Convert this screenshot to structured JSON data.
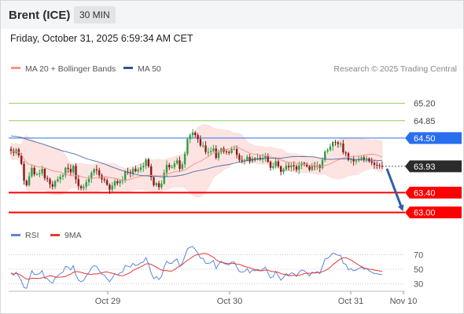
{
  "header": {
    "title": "Brent (ICE)",
    "timeframe": "30 MIN"
  },
  "date_label": "Friday, October 31, 2025 6:59:34 AM CET",
  "legend": {
    "items": [
      {
        "label": "MA 20 + Bollinger Bands",
        "color": "#f4958b"
      },
      {
        "label": "MA 50",
        "color": "#2f5597"
      }
    ],
    "credit": "Research © 2025 Trading Central"
  },
  "rsi_legend": {
    "items": [
      {
        "label": "RSI",
        "color": "#5b87d9"
      },
      {
        "label": "9MA",
        "color": "#e53935"
      }
    ]
  },
  "colors": {
    "up": "#2f9e44",
    "down": "#8b1a1a",
    "support": "#ff0000",
    "resistance": "#8dcf5a",
    "pivot": "#2a6ef0",
    "last": "#2b2b2b",
    "arrow": "#2f5ea8"
  },
  "chart_data": {
    "type": "candlestick",
    "x_ticks": [
      "Oct 29",
      "Oct 30",
      "Oct 31",
      "Nov 10"
    ],
    "ylim": [
      62.9,
      65.4
    ],
    "levels": [
      {
        "value": 65.2,
        "label": "65.20",
        "kind": "resistance"
      },
      {
        "value": 64.85,
        "label": "64.85",
        "kind": "resistance"
      },
      {
        "value": 64.5,
        "label": "64.50",
        "kind": "pivot"
      },
      {
        "value": 63.93,
        "label": "63.93",
        "kind": "last"
      },
      {
        "value": 63.4,
        "label": "63.40",
        "kind": "support"
      },
      {
        "value": 63.0,
        "label": "63.00",
        "kind": "support"
      }
    ],
    "forecast": {
      "from": 63.93,
      "to": 63.02
    },
    "close": [
      64.24,
      64.2,
      64.27,
      64.15,
      63.98,
      63.64,
      63.55,
      63.73,
      63.9,
      63.77,
      63.77,
      63.79,
      63.88,
      63.69,
      63.67,
      63.57,
      63.52,
      63.63,
      63.67,
      63.72,
      63.75,
      63.9,
      63.88,
      63.81,
      63.94,
      63.67,
      63.53,
      63.49,
      63.52,
      63.61,
      63.68,
      63.8,
      63.87,
      63.85,
      63.75,
      63.67,
      63.65,
      63.56,
      63.46,
      63.54,
      63.63,
      63.59,
      63.64,
      63.65,
      63.82,
      63.81,
      63.79,
      63.88,
      63.83,
      63.86,
      63.91,
      63.94,
      64.07,
      63.93,
      63.71,
      63.55,
      63.59,
      63.51,
      63.58,
      63.8,
      63.96,
      63.91,
      63.91,
      63.99,
      64.05,
      63.88,
      63.97,
      64.18,
      64.48,
      64.56,
      64.61,
      64.56,
      64.48,
      64.35,
      64.35,
      64.22,
      64.22,
      64.24,
      64.29,
      64.1,
      64.21,
      64.29,
      64.23,
      64.22,
      64.2,
      64.28,
      64.28,
      64.16,
      64.06,
      64.05,
      64.06,
      64.12,
      64.03,
      64.09,
      64.07,
      64.1,
      64.07,
      64.1,
      64.14,
      64.02,
      63.9,
      63.93,
      64.03,
      63.93,
      63.82,
      63.87,
      63.94,
      63.91,
      63.95,
      63.93,
      63.86,
      63.95,
      64.0,
      63.98,
      63.93,
      63.86,
      63.94,
      63.92,
      63.95,
      63.9,
      64.06,
      64.23,
      64.26,
      64.33,
      64.42,
      64.41,
      64.38,
      64.39,
      64.21,
      64.19,
      64.06,
      64.08,
      64.03,
      64.05,
      64.08,
      64.11,
      64.07,
      64.09,
      64.03,
      64.0,
      63.96,
      63.95,
      63.94,
      63.93
    ],
    "rsi": {
      "ticks": [
        70,
        50,
        30
      ],
      "ylim": [
        20,
        80
      ]
    },
    "rsi_values": [
      45,
      42,
      46,
      40,
      34,
      25,
      24,
      36,
      48,
      43,
      43,
      44,
      48,
      38,
      37,
      33,
      31,
      38,
      41,
      44,
      46,
      54,
      53,
      49,
      55,
      42,
      35,
      33,
      35,
      41,
      45,
      52,
      55,
      54,
      48,
      43,
      42,
      37,
      33,
      38,
      44,
      42,
      45,
      46,
      55,
      54,
      53,
      58,
      55,
      56,
      59,
      60,
      66,
      57,
      45,
      37,
      40,
      36,
      40,
      53,
      61,
      58,
      58,
      62,
      64,
      54,
      58,
      68,
      78,
      80,
      81,
      77,
      72,
      65,
      65,
      58,
      58,
      59,
      62,
      51,
      57,
      61,
      58,
      57,
      56,
      60,
      60,
      53,
      47,
      46,
      47,
      51,
      45,
      49,
      48,
      50,
      48,
      50,
      53,
      45,
      38,
      40,
      47,
      41,
      35,
      39,
      44,
      42,
      45,
      44,
      40,
      46,
      49,
      48,
      45,
      41,
      46,
      45,
      47,
      44,
      54,
      64,
      65,
      68,
      72,
      71,
      69,
      69,
      58,
      57,
      49,
      51,
      48,
      49,
      51,
      53,
      50,
      51,
      48,
      46,
      44,
      44,
      43,
      43
    ]
  }
}
